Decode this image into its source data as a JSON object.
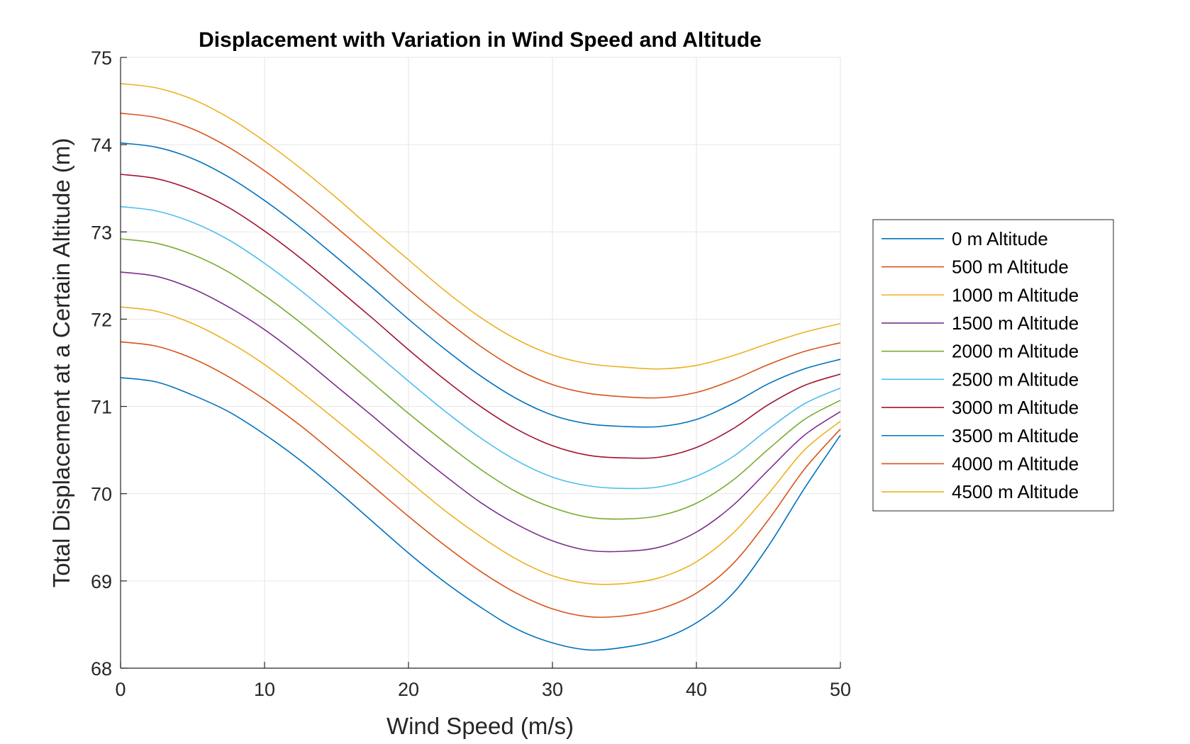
{
  "chart_data": {
    "type": "line",
    "title": "Displacement with Variation in Wind Speed and Altitude",
    "xlabel": "Wind Speed (m/s)",
    "ylabel": "Total Displacement at a Certain Altitude (m)",
    "xlim": [
      0,
      50
    ],
    "ylim": [
      68,
      75
    ],
    "xticks": [
      0,
      10,
      20,
      30,
      40,
      50
    ],
    "yticks": [
      68,
      69,
      70,
      71,
      72,
      73,
      74,
      75
    ],
    "grid": true,
    "legend_position": "right",
    "x": [
      0,
      2.5,
      5,
      7.5,
      10,
      12.5,
      15,
      17.5,
      20,
      22.5,
      25,
      27.5,
      30,
      32.5,
      35,
      37.5,
      40,
      42.5,
      45,
      47.5,
      50
    ],
    "series": [
      {
        "name": "0 m Altitude",
        "color": "#0072BD",
        "values": [
          71.33,
          71.28,
          71.13,
          70.94,
          70.68,
          70.38,
          70.04,
          69.68,
          69.32,
          68.99,
          68.7,
          68.45,
          68.29,
          68.21,
          68.24,
          68.33,
          68.52,
          68.85,
          69.4,
          70.06,
          70.67
        ]
      },
      {
        "name": "500 m Altitude",
        "color": "#D95319",
        "values": [
          71.74,
          71.69,
          71.55,
          71.34,
          71.08,
          70.78,
          70.44,
          70.09,
          69.74,
          69.41,
          69.11,
          68.86,
          68.68,
          68.59,
          68.6,
          68.68,
          68.86,
          69.19,
          69.7,
          70.28,
          70.74
        ]
      },
      {
        "name": "1000 m Altitude",
        "color": "#EDB120",
        "values": [
          72.14,
          72.09,
          71.95,
          71.74,
          71.48,
          71.17,
          70.84,
          70.5,
          70.15,
          69.81,
          69.51,
          69.25,
          69.06,
          68.97,
          68.97,
          69.04,
          69.22,
          69.54,
          70.0,
          70.5,
          70.83
        ]
      },
      {
        "name": "1500 m Altitude",
        "color": "#7E2F8E",
        "values": [
          72.54,
          72.49,
          72.35,
          72.14,
          71.88,
          71.57,
          71.23,
          70.89,
          70.54,
          70.21,
          69.9,
          69.65,
          69.46,
          69.35,
          69.34,
          69.39,
          69.56,
          69.86,
          70.27,
          70.67,
          70.94
        ]
      },
      {
        "name": "2000 m Altitude",
        "color": "#77AC30",
        "values": [
          72.92,
          72.87,
          72.74,
          72.54,
          72.27,
          71.96,
          71.62,
          71.27,
          70.92,
          70.59,
          70.28,
          70.02,
          69.84,
          69.73,
          69.71,
          69.75,
          69.89,
          70.15,
          70.51,
          70.85,
          71.07
        ]
      },
      {
        "name": "2500 m Altitude",
        "color": "#4DBEEE",
        "values": [
          73.29,
          73.24,
          73.11,
          72.91,
          72.64,
          72.33,
          71.99,
          71.64,
          71.29,
          70.95,
          70.64,
          70.38,
          70.19,
          70.09,
          70.06,
          70.08,
          70.2,
          70.42,
          70.74,
          71.03,
          71.21
        ]
      },
      {
        "name": "3000 m Altitude",
        "color": "#A2142F",
        "values": [
          73.66,
          73.61,
          73.48,
          73.28,
          73.01,
          72.7,
          72.36,
          72.01,
          71.65,
          71.31,
          71.0,
          70.74,
          70.55,
          70.44,
          70.41,
          70.42,
          70.53,
          70.74,
          71.02,
          71.24,
          71.37
        ]
      },
      {
        "name": "3500 m Altitude",
        "color": "#0072BD",
        "values": [
          74.02,
          73.97,
          73.84,
          73.63,
          73.36,
          73.05,
          72.71,
          72.36,
          72.0,
          71.66,
          71.35,
          71.09,
          70.9,
          70.8,
          70.77,
          70.77,
          70.85,
          71.03,
          71.26,
          71.43,
          71.54
        ]
      },
      {
        "name": "4000 m Altitude",
        "color": "#D95319",
        "values": [
          74.36,
          74.31,
          74.18,
          73.97,
          73.7,
          73.39,
          73.05,
          72.7,
          72.34,
          72.0,
          71.69,
          71.43,
          71.25,
          71.15,
          71.11,
          71.1,
          71.16,
          71.3,
          71.48,
          71.63,
          71.73
        ]
      },
      {
        "name": "4500 m Altitude",
        "color": "#EDB120",
        "values": [
          74.7,
          74.65,
          74.52,
          74.31,
          74.04,
          73.73,
          73.39,
          73.03,
          72.68,
          72.33,
          72.02,
          71.77,
          71.59,
          71.49,
          71.45,
          71.43,
          71.47,
          71.58,
          71.72,
          71.85,
          71.95
        ]
      }
    ]
  }
}
